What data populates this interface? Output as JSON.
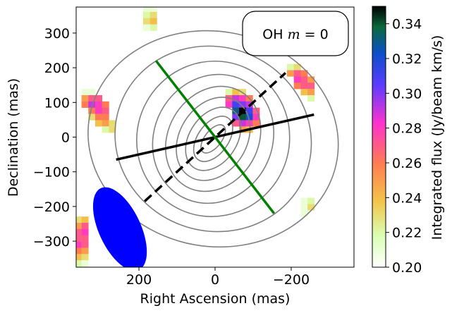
{
  "chart_data": {
    "type": "heatmap",
    "title": "",
    "annotation": {
      "prefix": "OH ",
      "var": "m",
      "suffix": " = 0"
    },
    "xlabel": "Right Ascension (mas)",
    "ylabel": "Declination (mas)",
    "xlim": [
      365,
      -365
    ],
    "ylim": [
      -375,
      375
    ],
    "xticks": [
      200,
      0,
      -200
    ],
    "xtick_labels": [
      "200",
      "0",
      "−200"
    ],
    "yticks": [
      300,
      200,
      100,
      0,
      -100,
      -200,
      -300
    ],
    "ytick_labels": [
      "300",
      "200",
      "100",
      "0",
      "−100",
      "−200",
      "−300"
    ],
    "colorbar": {
      "label": "Integrated flux (Jy/beam km/s)",
      "vmin": 0.2,
      "vmax": 0.35,
      "ticks": [
        0.2,
        0.22,
        0.24,
        0.26,
        0.28,
        0.3,
        0.32,
        0.34
      ],
      "tick_labels": [
        "0.20",
        "0.22",
        "0.24",
        "0.26",
        "0.28",
        "0.30",
        "0.32",
        "0.34"
      ]
    },
    "pixel_size_mas": 18,
    "pixels": [
      [
        180,
        370,
        0.21
      ],
      [
        162,
        370,
        0.21
      ],
      [
        180,
        352,
        0.22
      ],
      [
        162,
        352,
        0.23
      ],
      [
        180,
        334,
        0.23
      ],
      [
        162,
        334,
        0.24
      ],
      [
        162,
        316,
        0.22
      ],
      [
        180,
        316,
        0.21
      ],
      [
        342,
        130,
        0.21
      ],
      [
        324,
        130,
        0.21
      ],
      [
        342,
        112,
        0.25
      ],
      [
        324,
        112,
        0.27
      ],
      [
        306,
        112,
        0.27
      ],
      [
        342,
        94,
        0.26
      ],
      [
        324,
        94,
        0.29
      ],
      [
        306,
        94,
        0.28
      ],
      [
        288,
        94,
        0.26
      ],
      [
        324,
        76,
        0.26
      ],
      [
        306,
        76,
        0.28
      ],
      [
        288,
        76,
        0.27
      ],
      [
        324,
        58,
        0.23
      ],
      [
        306,
        58,
        0.26
      ],
      [
        288,
        58,
        0.26
      ],
      [
        306,
        40,
        0.24
      ],
      [
        288,
        40,
        0.25
      ],
      [
        270,
        40,
        0.23
      ],
      [
        288,
        22,
        0.22
      ],
      [
        270,
        22,
        0.23
      ],
      [
        -36,
        130,
        0.22
      ],
      [
        -54,
        130,
        0.24
      ],
      [
        -72,
        130,
        0.23
      ],
      [
        -36,
        112,
        0.27
      ],
      [
        -54,
        112,
        0.29
      ],
      [
        -72,
        112,
        0.28
      ],
      [
        -90,
        112,
        0.26
      ],
      [
        -36,
        94,
        0.28
      ],
      [
        -54,
        94,
        0.31
      ],
      [
        -72,
        94,
        0.3
      ],
      [
        -90,
        94,
        0.29
      ],
      [
        -54,
        76,
        0.33
      ],
      [
        -72,
        76,
        0.35
      ],
      [
        -90,
        76,
        0.31
      ],
      [
        -108,
        76,
        0.27
      ],
      [
        -54,
        58,
        0.3
      ],
      [
        -72,
        58,
        0.34
      ],
      [
        -90,
        58,
        0.32
      ],
      [
        -108,
        58,
        0.28
      ],
      [
        -54,
        40,
        0.27
      ],
      [
        -72,
        40,
        0.29
      ],
      [
        -90,
        40,
        0.28
      ],
      [
        -108,
        40,
        0.26
      ],
      [
        -72,
        22,
        0.25
      ],
      [
        -90,
        22,
        0.24
      ],
      [
        -198,
        202,
        0.22
      ],
      [
        -216,
        202,
        0.23
      ],
      [
        -198,
        184,
        0.25
      ],
      [
        -216,
        184,
        0.27
      ],
      [
        -234,
        184,
        0.26
      ],
      [
        -216,
        166,
        0.28
      ],
      [
        -234,
        166,
        0.27
      ],
      [
        -252,
        166,
        0.25
      ],
      [
        -216,
        148,
        0.26
      ],
      [
        -234,
        148,
        0.27
      ],
      [
        -252,
        148,
        0.27
      ],
      [
        -234,
        130,
        0.24
      ],
      [
        -252,
        130,
        0.25
      ],
      [
        -252,
        112,
        0.22
      ],
      [
        -234,
        -184,
        0.21
      ],
      [
        -252,
        -184,
        0.22
      ],
      [
        -234,
        -202,
        0.21
      ],
      [
        -252,
        -202,
        0.23
      ],
      [
        -234,
        -220,
        0.21
      ],
      [
        360,
        -238,
        0.23
      ],
      [
        342,
        -238,
        0.24
      ],
      [
        360,
        -256,
        0.25
      ],
      [
        342,
        -256,
        0.27
      ],
      [
        360,
        -274,
        0.27
      ],
      [
        342,
        -274,
        0.28
      ],
      [
        360,
        -292,
        0.27
      ],
      [
        342,
        -292,
        0.27
      ],
      [
        360,
        -310,
        0.28
      ],
      [
        342,
        -310,
        0.27
      ],
      [
        360,
        -328,
        0.26
      ],
      [
        342,
        -328,
        0.25
      ],
      [
        360,
        -346,
        0.24
      ],
      [
        342,
        -346,
        0.23
      ],
      [
        360,
        -364,
        0.22
      ],
      [
        342,
        -364,
        0.21
      ]
    ],
    "contours": {
      "center": [
        5,
        -5
      ],
      "levels": [
        {
          "rx": 330,
          "ry": 310,
          "rot": 10
        },
        {
          "rx": 260,
          "ry": 265,
          "rot": 20
        },
        {
          "rx": 200,
          "ry": 225,
          "rot": 25
        },
        {
          "rx": 155,
          "ry": 190,
          "rot": 28
        },
        {
          "rx": 118,
          "ry": 158,
          "rot": 30
        },
        {
          "rx": 88,
          "ry": 128,
          "rot": 32
        },
        {
          "rx": 62,
          "ry": 100,
          "rot": 34
        },
        {
          "rx": 40,
          "ry": 74,
          "rot": 36
        },
        {
          "rx": 22,
          "ry": 48,
          "rot": 38
        }
      ],
      "color": "#808080"
    },
    "lines": [
      {
        "name": "black-solid",
        "x": [
          260,
          -260
        ],
        "y": [
          -65,
          65
        ],
        "color": "#000000",
        "dash": false
      },
      {
        "name": "black-dashed",
        "x": [
          185,
          -185
        ],
        "y": [
          -185,
          185
        ],
        "color": "#000000",
        "dash": true
      },
      {
        "name": "green-solid",
        "x": [
          155,
          -155
        ],
        "y": [
          220,
          -220
        ],
        "color": "#008000",
        "dash": false
      }
    ],
    "beam": {
      "x": 250,
      "y": -265,
      "width": 110,
      "height": 260,
      "pa_deg": 25,
      "color": "#0000ff"
    }
  }
}
